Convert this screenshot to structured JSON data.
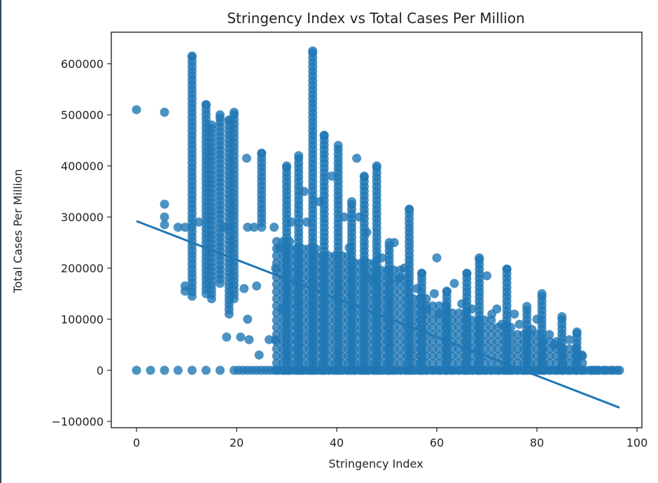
{
  "chart_data": {
    "type": "scatter",
    "title": "Stringency Index vs Total Cases Per Million",
    "xlabel": "Stringency Index",
    "ylabel": "Total Cases Per Million",
    "xlim": [
      -5,
      101
    ],
    "ylim": [
      -110000,
      660000
    ],
    "xticks": [
      0,
      20,
      40,
      60,
      80,
      100
    ],
    "yticks": [
      -100000,
      0,
      100000,
      200000,
      300000,
      400000,
      500000,
      600000
    ],
    "xtick_labels": [
      "0",
      "20",
      "40",
      "60",
      "80",
      "100"
    ],
    "ytick_labels": [
      "−100000",
      "0",
      "100000",
      "200000",
      "300000",
      "400000",
      "500000",
      "600000"
    ],
    "grid": false,
    "color": "#1f77b4",
    "regression_line": {
      "x": [
        0,
        96.5
      ],
      "y": [
        292000,
        -73000
      ]
    },
    "columns": [
      {
        "x": 11.1,
        "y_min": 145000,
        "y_max": 615000
      },
      {
        "x": 35.2,
        "y_min": 0,
        "y_max": 625000
      },
      {
        "x": 13.9,
        "y_min": 150000,
        "y_max": 520000
      },
      {
        "x": 15.0,
        "y_min": 140000,
        "y_max": 480000
      },
      {
        "x": 16.7,
        "y_min": 170000,
        "y_max": 500000
      },
      {
        "x": 18.5,
        "y_min": 110000,
        "y_max": 490000
      },
      {
        "x": 19.5,
        "y_min": 140000,
        "y_max": 505000
      },
      {
        "x": 25.0,
        "y_min": 280000,
        "y_max": 425000
      },
      {
        "x": 30.0,
        "y_min": 0,
        "y_max": 400000
      },
      {
        "x": 32.4,
        "y_min": 0,
        "y_max": 420000
      },
      {
        "x": 37.5,
        "y_min": 0,
        "y_max": 460000
      },
      {
        "x": 40.3,
        "y_min": 0,
        "y_max": 440000
      },
      {
        "x": 43.0,
        "y_min": 0,
        "y_max": 330000
      },
      {
        "x": 45.5,
        "y_min": 0,
        "y_max": 380000
      },
      {
        "x": 48.0,
        "y_min": 0,
        "y_max": 400000
      },
      {
        "x": 50.5,
        "y_min": 0,
        "y_max": 250000
      },
      {
        "x": 54.5,
        "y_min": 0,
        "y_max": 315000
      },
      {
        "x": 57.0,
        "y_min": 0,
        "y_max": 190000
      },
      {
        "x": 62.0,
        "y_min": 0,
        "y_max": 155000
      },
      {
        "x": 66.0,
        "y_min": 0,
        "y_max": 190000
      },
      {
        "x": 68.5,
        "y_min": 0,
        "y_max": 220000
      },
      {
        "x": 74.0,
        "y_min": 0,
        "y_max": 198000
      },
      {
        "x": 78.0,
        "y_min": 0,
        "y_max": 125000
      },
      {
        "x": 81.0,
        "y_min": 0,
        "y_max": 150000
      },
      {
        "x": 85.0,
        "y_min": 0,
        "y_max": 105000
      },
      {
        "x": 88.0,
        "y_min": 0,
        "y_max": 75000
      }
    ],
    "points": [
      [
        0,
        510000
      ],
      [
        0,
        0
      ],
      [
        2.8,
        0
      ],
      [
        5.6,
        0
      ],
      [
        8.3,
        0
      ],
      [
        11.1,
        0
      ],
      [
        13.9,
        0
      ],
      [
        16.7,
        0
      ],
      [
        5.6,
        505000
      ],
      [
        5.6,
        325000
      ],
      [
        5.6,
        300000
      ],
      [
        5.6,
        285000
      ],
      [
        8.3,
        280000
      ],
      [
        9.7,
        280000
      ],
      [
        9.7,
        165000
      ],
      [
        9.7,
        155000
      ],
      [
        12.5,
        290000
      ],
      [
        17.6,
        280000
      ],
      [
        21.5,
        160000
      ],
      [
        22.0,
        415000
      ],
      [
        22.2,
        280000
      ],
      [
        22.2,
        100000
      ],
      [
        22.5,
        60000
      ],
      [
        20.8,
        65000
      ],
      [
        18.0,
        65000
      ],
      [
        23.5,
        280000
      ],
      [
        24.0,
        165000
      ],
      [
        24.5,
        30000
      ],
      [
        26.5,
        60000
      ],
      [
        27.5,
        280000
      ],
      [
        27.8,
        200000
      ],
      [
        27.8,
        60000
      ],
      [
        28.5,
        240000
      ],
      [
        29.0,
        120000
      ],
      [
        31.0,
        290000
      ],
      [
        33.5,
        350000
      ],
      [
        34.0,
        290000
      ],
      [
        36.5,
        330000
      ],
      [
        39.0,
        380000
      ],
      [
        41.5,
        300000
      ],
      [
        42.5,
        240000
      ],
      [
        44.0,
        415000
      ],
      [
        44.5,
        300000
      ],
      [
        46.0,
        270000
      ],
      [
        47.0,
        180000
      ],
      [
        49.0,
        220000
      ],
      [
        51.5,
        250000
      ],
      [
        52.5,
        180000
      ],
      [
        53.5,
        200000
      ],
      [
        56.0,
        160000
      ],
      [
        58.0,
        120000
      ],
      [
        59.5,
        150000
      ],
      [
        60.0,
        220000
      ],
      [
        60.5,
        110000
      ],
      [
        63.5,
        170000
      ],
      [
        65.0,
        130000
      ],
      [
        67.0,
        120000
      ],
      [
        70.0,
        185000
      ],
      [
        71.0,
        110000
      ],
      [
        72.0,
        120000
      ],
      [
        73.0,
        90000
      ],
      [
        75.5,
        110000
      ],
      [
        76.5,
        90000
      ],
      [
        79.0,
        80000
      ],
      [
        80.0,
        100000
      ],
      [
        82.5,
        70000
      ],
      [
        83.5,
        50000
      ],
      [
        86.5,
        60000
      ],
      [
        89.0,
        30000
      ],
      [
        91.0,
        0
      ],
      [
        92.0,
        0
      ],
      [
        93.5,
        0
      ],
      [
        95.0,
        0
      ],
      [
        96.5,
        0
      ]
    ]
  }
}
